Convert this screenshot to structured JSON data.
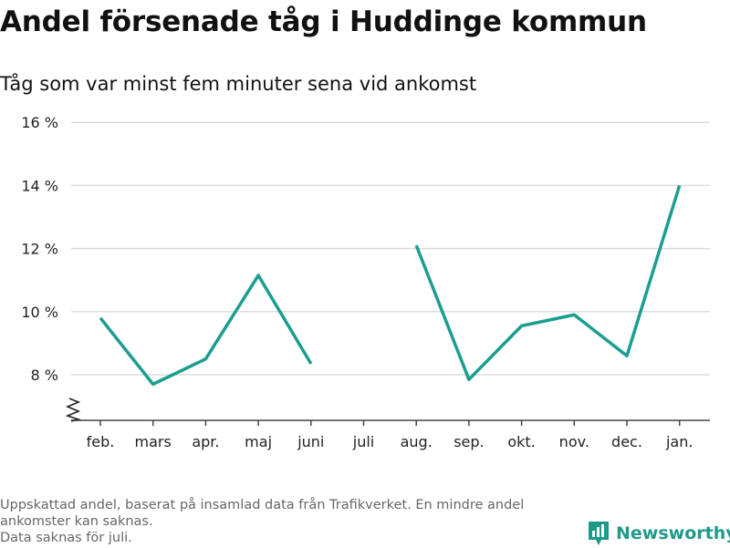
{
  "header": {
    "title": "Andel försenade tåg i Huddinge kommun",
    "subtitle": "Tåg som var minst fem minuter sena vid ankomst"
  },
  "footer": {
    "note_line1": "Uppskattad andel, baserat på insamlad data från Trafikverket. En mindre andel ankomster kan saknas.",
    "note_line2": "Data saknas för juli.",
    "brand": "Newsworthy"
  },
  "colors": {
    "line": "#1a9e8f",
    "grid": "#dddddd",
    "brand": "#1f9a8a"
  },
  "icons": {
    "axis_break": "zigzag-break-icon",
    "logo": "bar-chart-logo-icon"
  },
  "chart_data": {
    "type": "line",
    "categories": [
      "feb.",
      "mars",
      "apr.",
      "maj",
      "juni",
      "juli",
      "aug.",
      "sep.",
      "okt.",
      "nov.",
      "dec.",
      "jan."
    ],
    "series": [
      {
        "values": [
          9.8,
          7.7,
          8.5,
          11.15,
          8.35,
          null,
          12.1,
          7.85,
          9.55,
          9.9,
          8.6,
          14.0
        ]
      }
    ],
    "yticks": [
      8,
      10,
      12,
      14,
      16
    ],
    "ytick_labels": [
      "8 %",
      "10 %",
      "12 %",
      "14 %",
      "16 %"
    ],
    "ylim": [
      6.5,
      16
    ],
    "y_axis_break": true,
    "grid": true,
    "legend": "none"
  }
}
